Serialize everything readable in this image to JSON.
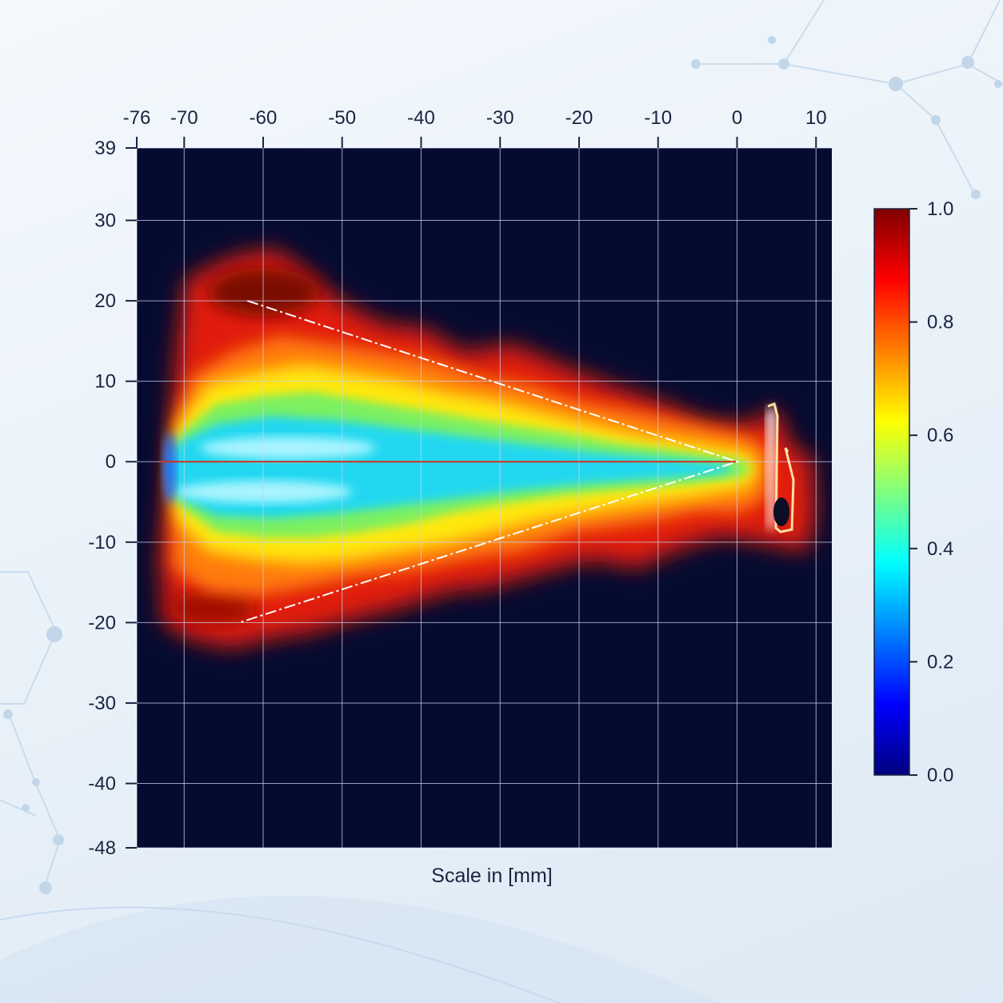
{
  "chart_data": {
    "type": "heatmap",
    "title": "",
    "xlabel": "Scale in [mm]",
    "ylabel": "",
    "xlim": [
      -76,
      12
    ],
    "ylim": [
      -48,
      39
    ],
    "x_ticks": [
      -76,
      -70,
      -60,
      -50,
      -40,
      -30,
      -20,
      -10,
      0,
      10
    ],
    "y_ticks": [
      39,
      30,
      20,
      10,
      0,
      -10,
      -20,
      -30,
      -40,
      -48
    ],
    "grid": true,
    "colorbar": {
      "range": [
        0.0,
        1.0
      ],
      "ticks": [
        "1.0",
        "0.8",
        "0.6",
        "0.4",
        "0.2",
        "0.0"
      ],
      "colormap": "jet"
    },
    "spray_envelope": {
      "note_points": [
        [
          -62,
          20
        ],
        [
          0,
          0
        ],
        [
          -63,
          -20
        ]
      ]
    },
    "centerline_y": 0,
    "colors": {
      "background": "#050b30",
      "grid": "#c9d3f0",
      "envelope_line": "#ffffff",
      "centerline": "#d03020"
    }
  }
}
